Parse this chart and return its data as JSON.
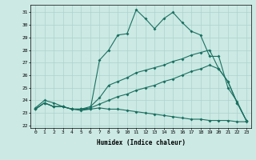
{
  "title": "",
  "xlabel": "Humidex (Indice chaleur)",
  "background_color": "#cce9e4",
  "grid_color": "#aad4cc",
  "line_color": "#1a7060",
  "xlim": [
    -0.5,
    23.5
  ],
  "ylim": [
    21.8,
    31.6
  ],
  "yticks": [
    22,
    23,
    24,
    25,
    26,
    27,
    28,
    29,
    30,
    31
  ],
  "xticks": [
    0,
    1,
    2,
    3,
    4,
    5,
    6,
    7,
    8,
    9,
    10,
    11,
    12,
    13,
    14,
    15,
    16,
    17,
    18,
    19,
    20,
    21,
    22,
    23
  ],
  "line1_x": [
    0,
    1,
    2,
    3,
    4,
    5,
    6,
    7,
    8,
    9,
    10,
    11,
    12,
    13,
    14,
    15,
    16,
    17,
    18,
    19,
    20,
    21,
    22,
    23
  ],
  "line1_y": [
    23.4,
    24.0,
    23.8,
    23.5,
    23.3,
    23.2,
    23.3,
    27.2,
    28.0,
    29.2,
    29.3,
    31.2,
    30.5,
    29.7,
    30.5,
    31.0,
    30.2,
    29.5,
    29.2,
    27.5,
    27.5,
    25.0,
    23.9,
    22.4
  ],
  "line2_x": [
    0,
    1,
    2,
    3,
    4,
    5,
    6,
    7,
    8,
    9,
    10,
    11,
    12,
    13,
    14,
    15,
    16,
    17,
    18,
    19,
    20,
    21,
    22,
    23
  ],
  "line2_y": [
    23.3,
    23.8,
    23.5,
    23.5,
    23.3,
    23.3,
    23.3,
    23.4,
    23.3,
    23.3,
    23.2,
    23.1,
    23.0,
    22.9,
    22.8,
    22.7,
    22.6,
    22.5,
    22.5,
    22.4,
    22.4,
    22.4,
    22.3,
    22.3
  ],
  "line3_x": [
    0,
    1,
    2,
    3,
    4,
    5,
    6,
    7,
    8,
    9,
    10,
    11,
    12,
    13,
    14,
    15,
    16,
    17,
    18,
    19,
    20,
    21,
    22,
    23
  ],
  "line3_y": [
    23.3,
    23.8,
    23.5,
    23.5,
    23.3,
    23.3,
    23.5,
    24.2,
    25.2,
    25.5,
    25.8,
    26.2,
    26.4,
    26.6,
    26.8,
    27.1,
    27.3,
    27.6,
    27.8,
    28.0,
    26.5,
    25.5,
    23.8,
    22.4
  ],
  "line4_x": [
    0,
    1,
    2,
    3,
    4,
    5,
    6,
    7,
    8,
    9,
    10,
    11,
    12,
    13,
    14,
    15,
    16,
    17,
    18,
    19,
    20,
    21,
    22,
    23
  ],
  "line4_y": [
    23.3,
    23.8,
    23.5,
    23.5,
    23.3,
    23.3,
    23.4,
    23.7,
    24.0,
    24.3,
    24.5,
    24.8,
    25.0,
    25.2,
    25.5,
    25.7,
    26.0,
    26.3,
    26.5,
    26.8,
    26.5,
    25.5,
    23.8,
    22.4
  ]
}
